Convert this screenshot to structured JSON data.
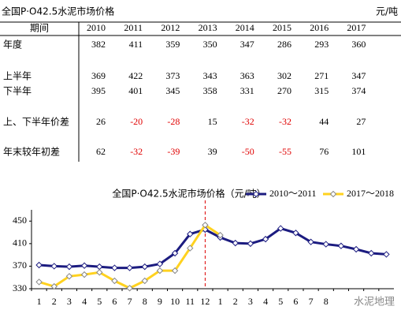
{
  "table": {
    "title": "全国P·O42.5水泥市场价格",
    "unit": "元/吨",
    "header": "期间",
    "years": [
      "2010",
      "2011",
      "2012",
      "2013",
      "2014",
      "2015",
      "2016",
      "2017"
    ],
    "rows": [
      {
        "label": "年度",
        "values": [
          382,
          411,
          359,
          350,
          347,
          286,
          293,
          360
        ]
      },
      {
        "label": "上半年",
        "values": [
          369,
          422,
          373,
          343,
          363,
          302,
          271,
          347
        ]
      },
      {
        "label": "下半年",
        "values": [
          395,
          401,
          345,
          358,
          331,
          270,
          315,
          374
        ]
      },
      {
        "label": "上、下半年价差",
        "values": [
          26,
          -20,
          -28,
          15,
          -32,
          -32,
          44,
          27
        ]
      },
      {
        "label": "年末较年初差",
        "values": [
          62,
          -32,
          -39,
          39,
          -50,
          -55,
          76,
          101
        ]
      }
    ]
  },
  "chart_data": {
    "type": "line",
    "title": "全国P·O42.5水泥市场价格（元/吨）",
    "categories": [
      "1",
      "2",
      "3",
      "4",
      "5",
      "6",
      "7",
      "8",
      "9",
      "10",
      "11",
      "12",
      "1",
      "2",
      "3",
      "4",
      "5",
      "6",
      "7",
      "8",
      null,
      null,
      null,
      null
    ],
    "series": [
      {
        "name": "2010～2011",
        "color": "#1c1c80",
        "values": [
          372,
          370,
          369,
          371,
          369,
          367,
          367,
          369,
          374,
          393,
          427,
          435,
          421,
          411,
          410,
          418,
          437,
          429,
          413,
          409,
          406,
          400,
          393,
          391
        ]
      },
      {
        "name": "2017～2018",
        "color": "#ffd21f",
        "values": [
          342,
          334,
          352,
          355,
          359,
          344,
          331,
          344,
          362,
          362,
          402,
          443,
          425,
          null,
          null,
          null,
          null,
          null,
          null,
          null,
          null,
          null,
          null,
          null
        ]
      }
    ],
    "ylim": [
      330,
      470
    ],
    "yticks": [
      330,
      370,
      410,
      450
    ],
    "grid": false,
    "legend": "top-right"
  },
  "watermark": "水泥地理"
}
